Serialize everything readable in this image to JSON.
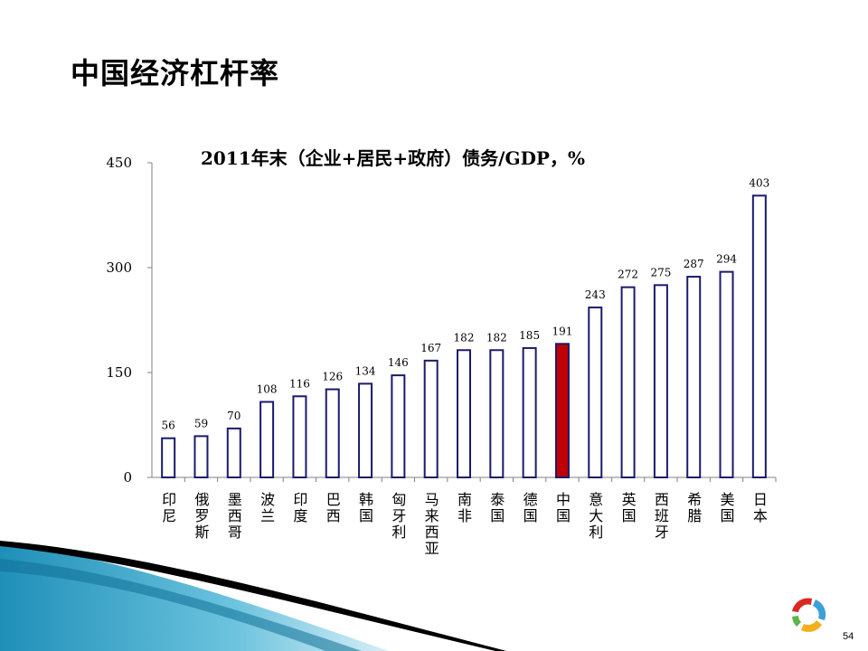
{
  "slide": {
    "title": "中国经济杠杆率",
    "page_number": "54"
  },
  "colors": {
    "bar_fill": "#ffffff",
    "bar_stroke": "#1a1a6e",
    "highlight_fill": "#c00000",
    "axis": "#808080",
    "accent_teal": "#2a9fc9"
  },
  "chart_data": {
    "type": "bar",
    "title": "2011年末（企业+居民+政府）债务/GDP，%",
    "categories": [
      "印尼",
      "俄罗斯",
      "墨西哥",
      "波兰",
      "印度",
      "巴西",
      "韩国",
      "匈牙利",
      "马来西亚",
      "南非",
      "泰国",
      "德国",
      "中国",
      "意大利",
      "英国",
      "西班牙",
      "希腊",
      "美国",
      "日本"
    ],
    "values": [
      56,
      59,
      70,
      108,
      116,
      126,
      134,
      146,
      167,
      182,
      182,
      185,
      191,
      243,
      272,
      275,
      287,
      294,
      403
    ],
    "highlight_category": "中国",
    "ylim": [
      0,
      450
    ],
    "yticks": [
      0,
      150,
      300,
      450
    ],
    "xlabel": "",
    "ylabel": "",
    "grid": false
  }
}
